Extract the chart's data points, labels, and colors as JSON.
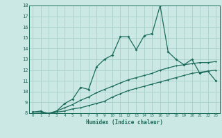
{
  "title": "",
  "xlabel": "Humidex (Indice chaleur)",
  "background_color": "#cce8e4",
  "grid_color": "#a8cfca",
  "line_color": "#1a6b5a",
  "x_values": [
    0,
    1,
    2,
    3,
    4,
    5,
    6,
    7,
    8,
    9,
    10,
    11,
    12,
    13,
    14,
    15,
    16,
    17,
    18,
    19,
    20,
    21,
    22,
    23
  ],
  "y_main": [
    8.1,
    8.2,
    7.9,
    8.2,
    8.9,
    9.3,
    10.4,
    10.2,
    12.3,
    13.0,
    13.4,
    15.1,
    15.1,
    13.9,
    15.2,
    15.4,
    18.0,
    13.7,
    13.0,
    12.5,
    13.0,
    11.7,
    11.9,
    11.0
  ],
  "y_low": [
    8.1,
    8.1,
    7.9,
    8.1,
    8.2,
    8.4,
    8.5,
    8.7,
    8.9,
    9.1,
    9.5,
    9.8,
    10.1,
    10.3,
    10.5,
    10.7,
    10.9,
    11.1,
    11.3,
    11.5,
    11.7,
    11.8,
    11.9,
    12.0
  ],
  "y_high": [
    8.1,
    8.1,
    8.0,
    8.2,
    8.5,
    8.8,
    9.2,
    9.5,
    9.9,
    10.2,
    10.5,
    10.8,
    11.1,
    11.3,
    11.5,
    11.7,
    12.0,
    12.2,
    12.4,
    12.5,
    12.6,
    12.7,
    12.7,
    12.8
  ],
  "ylim": [
    8,
    18
  ],
  "xlim": [
    -0.5,
    23.5
  ],
  "yticks": [
    8,
    9,
    10,
    11,
    12,
    13,
    14,
    15,
    16,
    17,
    18
  ],
  "xticks": [
    0,
    1,
    2,
    3,
    4,
    5,
    6,
    7,
    8,
    9,
    10,
    11,
    12,
    13,
    14,
    15,
    16,
    17,
    18,
    19,
    20,
    21,
    22,
    23
  ]
}
